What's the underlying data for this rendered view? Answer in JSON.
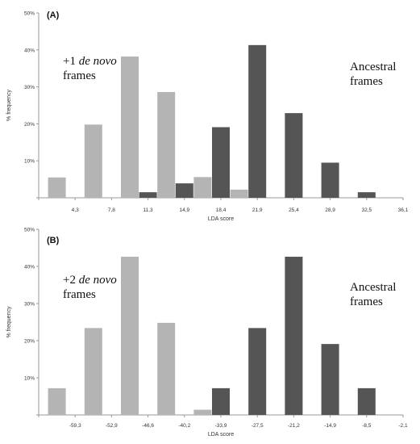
{
  "chart_data": [
    {
      "type": "bar",
      "panel_label": "(A)",
      "xlabel": "LDA score",
      "ylabel": "% frequency",
      "ylim": [
        0,
        50
      ],
      "yticks": [
        "",
        "10%",
        "20%",
        "30%",
        "40%",
        "50%"
      ],
      "x_tick_labels": [
        "4,3",
        "7,8",
        "11,3",
        "14,9",
        "18,4",
        "21,9",
        "25,4",
        "28,9",
        "32,5",
        "36,1"
      ],
      "annotations": [
        {
          "lines": [
            "+1 ",
            "de novo",
            "frames"
          ],
          "key": "left"
        },
        {
          "lines": [
            "Ancestral",
            "frames"
          ],
          "key": "right"
        }
      ],
      "series": [
        {
          "name": "+1 de novo frames",
          "color": "#b4b4b4",
          "values": [
            5.5,
            19.8,
            38.2,
            28.6,
            5.6,
            2.2,
            null,
            null,
            null,
            null
          ]
        },
        {
          "name": "Ancestral frames",
          "color": "#555555",
          "values": [
            null,
            null,
            1.5,
            3.9,
            19.1,
            41.3,
            22.9,
            9.5,
            1.5,
            null
          ]
        }
      ]
    },
    {
      "type": "bar",
      "panel_label": "(B)",
      "xlabel": "LDA score",
      "ylabel": "% frequency",
      "ylim": [
        0,
        50
      ],
      "yticks": [
        "",
        "10%",
        "20%",
        "30%",
        "40%",
        "50%"
      ],
      "x_tick_labels": [
        "-59,3",
        "-52,9",
        "-46,6",
        "-40,2",
        "-33,9",
        "-27,5",
        "-21,2",
        "-14,9",
        "-8,5",
        "-2,1"
      ],
      "annotations": [
        {
          "lines": [
            "+2 ",
            "de novo",
            "frames"
          ],
          "key": "left"
        },
        {
          "lines": [
            "Ancestral",
            "frames"
          ],
          "key": "right"
        }
      ],
      "series": [
        {
          "name": "+2 de novo frames",
          "color": "#b4b4b4",
          "values": [
            7.2,
            23.4,
            42.6,
            24.8,
            1.4,
            null,
            null,
            null,
            null,
            null
          ]
        },
        {
          "name": "Ancestral frames",
          "color": "#555555",
          "values": [
            null,
            null,
            null,
            null,
            7.2,
            23.4,
            42.6,
            19.1,
            7.2,
            null
          ]
        }
      ]
    }
  ]
}
